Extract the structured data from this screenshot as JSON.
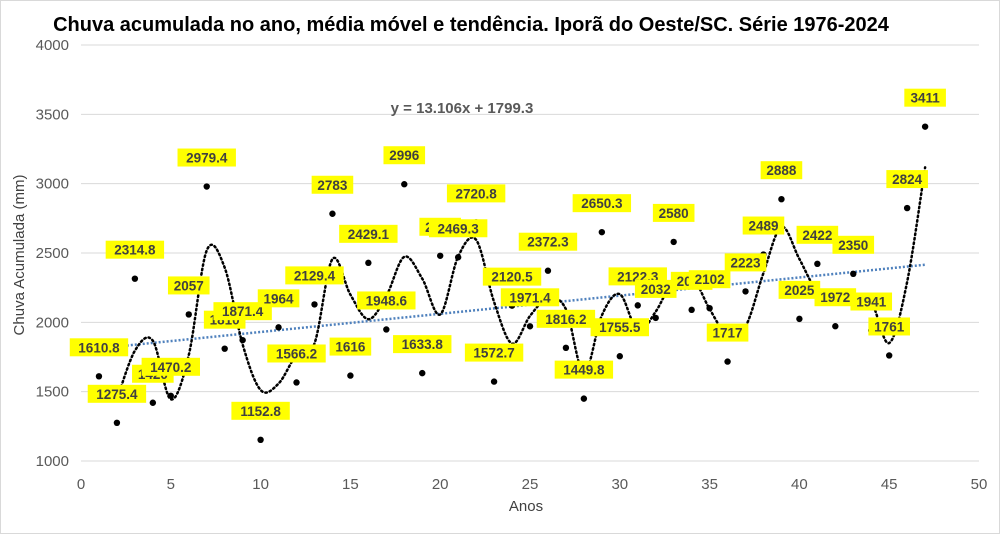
{
  "chart_data": {
    "type": "scatter",
    "title": "Chuva acumulada no ano, média móvel e tendência. Iporã do Oeste/SC. Série 1976-2024",
    "xlabel": "Anos",
    "ylabel": "Chuva Acumulada (mm)",
    "xlim": [
      0,
      50
    ],
    "ylim": [
      1000,
      4000
    ],
    "x_ticks": [
      "0",
      "5",
      "10",
      "15",
      "20",
      "25",
      "30",
      "35",
      "40",
      "45",
      "50"
    ],
    "y_ticks": [
      "1000",
      "1500",
      "2000",
      "2500",
      "3000",
      "3500",
      "4000"
    ],
    "x": [
      1,
      2,
      3,
      4,
      5,
      6,
      7,
      8,
      9,
      10,
      11,
      12,
      13,
      14,
      15,
      16,
      17,
      18,
      19,
      20,
      21,
      22,
      23,
      24,
      25,
      26,
      27,
      28,
      29,
      30,
      31,
      32,
      33,
      34,
      35,
      36,
      37,
      38,
      39,
      40,
      41,
      42,
      43,
      44,
      45,
      46,
      47
    ],
    "values": [
      1610.8,
      1275.4,
      2314.8,
      1420,
      1470.2,
      2057,
      2979.4,
      1810,
      1871.4,
      1152.8,
      1964,
      1566.2,
      2129.4,
      2783,
      1616,
      2429.1,
      1948.6,
      2996,
      1633.8,
      2480,
      2469.3,
      2720.8,
      1572.7,
      2120.5,
      1971.4,
      2372.3,
      1816.2,
      1449.8,
      2650.3,
      1755.5,
      2122.3,
      2032,
      2580,
      2090,
      2102,
      1717,
      2223,
      2489,
      2888,
      2025,
      2422,
      1972,
      2350,
      1941,
      1761,
      2824,
      3411
    ],
    "labels": [
      "1610.8",
      "1275.4",
      "2314.8",
      "1420",
      "1470.2",
      "2057",
      "2979.4",
      "1810",
      "1871.4",
      "1152.8",
      "1964",
      "1566.2",
      "2129.4",
      "2783",
      "1616",
      "2429.1",
      "1948.6",
      "2996",
      "1633.8",
      "2480",
      "2469.3",
      "2720.8",
      "1572.7",
      "2120.5",
      "1971.4",
      "2372.3",
      "1816.2",
      "1449.8",
      "2650.3",
      "1755.5",
      "2122.3",
      "2032",
      "2580",
      "2090",
      "2102",
      "1717",
      "2223",
      "2489",
      "2888",
      "2025",
      "2422",
      "1972",
      "2350",
      "1941",
      "1761",
      "2824",
      "3411"
    ],
    "moving_average": [
      [
        2,
        1443.1
      ],
      [
        3,
        1795.1
      ],
      [
        4,
        1867.4
      ],
      [
        5,
        1445.1
      ],
      [
        6,
        1763.6
      ],
      [
        7,
        2518.2
      ],
      [
        8,
        2394.7
      ],
      [
        9,
        1840.7
      ],
      [
        10,
        1512.1
      ],
      [
        11,
        1558.4
      ],
      [
        12,
        1765.1
      ],
      [
        13,
        1847.8
      ],
      [
        14,
        2456.2
      ],
      [
        15,
        2199.5
      ],
      [
        16,
        2022.6
      ],
      [
        17,
        2188.9
      ],
      [
        18,
        2472.3
      ],
      [
        19,
        2314.9
      ],
      [
        20,
        2056.9
      ],
      [
        21,
        2474.7
      ],
      [
        22,
        2595.1
      ],
      [
        23,
        2146.8
      ],
      [
        24,
        1846.6
      ],
      [
        25,
        2046.0
      ],
      [
        26,
        2171.9
      ],
      [
        27,
        2094.3
      ],
      [
        28,
        1633.0
      ],
      [
        29,
        2050.1
      ],
      [
        30,
        2202.9
      ],
      [
        31,
        1938.9
      ],
      [
        32,
        2077.2
      ],
      [
        33,
        2306.0
      ],
      [
        34,
        2335.0
      ],
      [
        35,
        2096.0
      ],
      [
        36,
        1909.5
      ],
      [
        37,
        1970.0
      ],
      [
        38,
        2356.0
      ],
      [
        39,
        2688.5
      ],
      [
        40,
        2456.5
      ],
      [
        41,
        2223.5
      ],
      [
        42,
        2197.0
      ],
      [
        43,
        2161.0
      ],
      [
        44,
        2145.5
      ],
      [
        45,
        1851.0
      ],
      [
        46,
        2292.5
      ],
      [
        47,
        3117.5
      ]
    ],
    "trendline": {
      "slope": 13.106,
      "intercept": 1799.3,
      "x_range": [
        1,
        47
      ]
    },
    "equation": "y = 13.106x + 1799.3",
    "grid": true,
    "colors": {
      "points": "#000000",
      "label_bg": "#ffff00",
      "trend": "#4f81bd",
      "moving_average": "#000000",
      "grid": "#d9d9d9"
    }
  }
}
